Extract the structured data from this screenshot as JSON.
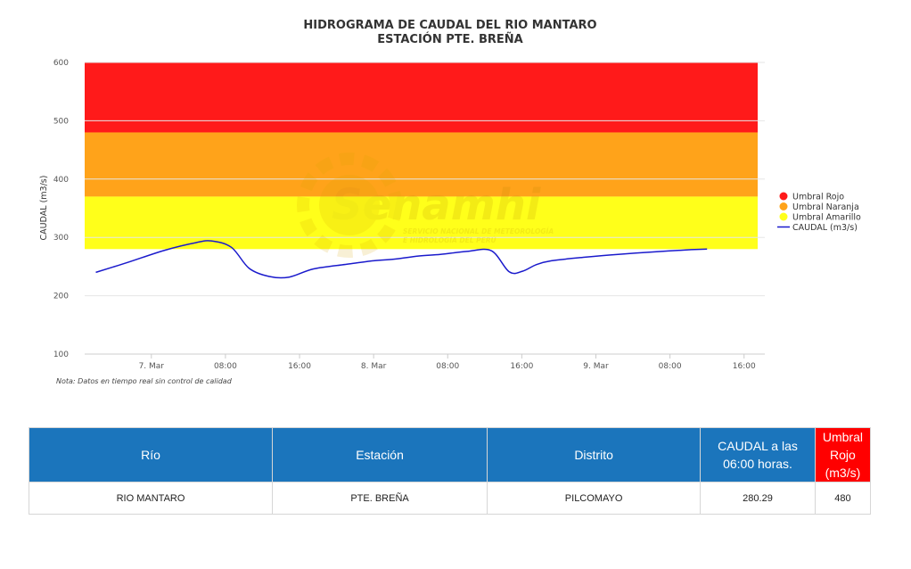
{
  "chart_data": {
    "type": "line",
    "title": "HIDROGRAMA DE CAUDAL DEL RIO MANTARO",
    "subtitle": "ESTACIÓN PTE. BREÑA",
    "ylabel": "CAUDAL (m3/s)",
    "xlabel": "",
    "ylim": [
      100,
      600
    ],
    "yticks": [
      "100",
      "200",
      "300",
      "400",
      "500",
      "600"
    ],
    "xlim": [
      -0.3,
      2.76
    ],
    "xticks": [
      {
        "t": 0.0,
        "label": "7. Mar"
      },
      {
        "t": 0.3333,
        "label": "08:00"
      },
      {
        "t": 0.6667,
        "label": "16:00"
      },
      {
        "t": 1.0,
        "label": "8. Mar"
      },
      {
        "t": 1.3333,
        "label": "08:00"
      },
      {
        "t": 1.6667,
        "label": "16:00"
      },
      {
        "t": 2.0,
        "label": "9. Mar"
      },
      {
        "t": 2.3333,
        "label": "08:00"
      },
      {
        "t": 2.6667,
        "label": "16:00"
      }
    ],
    "thresholds": [
      {
        "name": "Umbral Rojo",
        "from": 480,
        "to": 600,
        "color": "#ff1a1a"
      },
      {
        "name": "Umbral Naranja",
        "from": 370,
        "to": 480,
        "color": "#ffa31a"
      },
      {
        "name": "Umbral Amarillo",
        "from": 280,
        "to": 370,
        "color": "#ffff1a"
      }
    ],
    "series": [
      {
        "name": "CAUDAL (m3/s)",
        "color": "#1a1acc",
        "x": [
          -0.25,
          -0.1,
          0.06,
          0.2,
          0.27,
          0.36,
          0.44,
          0.53,
          0.62,
          0.73,
          0.88,
          1.0,
          1.1,
          1.2,
          1.3,
          1.42,
          1.53,
          1.61,
          1.67,
          1.73,
          1.8,
          1.95,
          2.1,
          2.25,
          2.43,
          2.5
        ],
        "values": [
          240,
          258,
          278,
          291,
          294,
          283,
          247,
          233,
          232,
          246,
          254,
          260,
          263,
          268,
          271,
          276,
          277,
          241,
          242,
          253,
          260,
          266,
          271,
          275,
          279,
          280
        ]
      }
    ],
    "legend_position": "right",
    "grid": true
  },
  "watermark": {
    "brand": "Senamhi",
    "line1": "SERVICIO NACIONAL DE METEOROLOGÍA",
    "line2": "E HIDROLOGÍA DEL PERÚ"
  },
  "note": "Nota: Datos en tiempo real sin control de calidad",
  "table": {
    "headers": [
      "Río",
      "Estación",
      "Distrito",
      "CAUDAL a las 06:00 horas.",
      "Umbral Rojo (m3/s)"
    ],
    "row": [
      "RIO MANTARO",
      "PTE. BREÑA",
      "PILCOMAYO",
      "280.29",
      "480"
    ]
  }
}
